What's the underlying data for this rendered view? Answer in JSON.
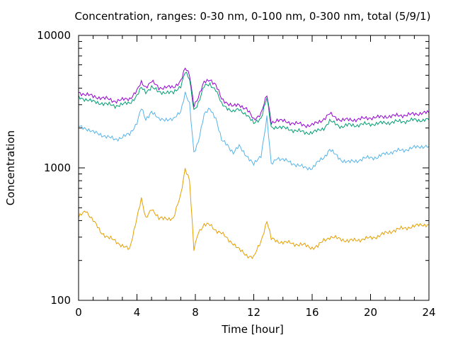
{
  "chart_data": {
    "type": "line",
    "title": "Concentration, ranges: 0-30 nm, 0-100 nm, 0-300 nm, total (5/9/1)",
    "xlabel": "Time [hour]",
    "ylabel": "Concentration",
    "xlim": [
      0,
      24
    ],
    "ylim": [
      100,
      10000
    ],
    "yscale": "log",
    "legend": "none",
    "grid": false,
    "x_ticks": [
      {
        "value": 0,
        "label": "0"
      },
      {
        "value": 4,
        "label": "4"
      },
      {
        "value": 8,
        "label": "8"
      },
      {
        "value": 12,
        "label": "12"
      },
      {
        "value": 16,
        "label": "16"
      },
      {
        "value": 20,
        "label": "20"
      },
      {
        "value": 24,
        "label": "24"
      }
    ],
    "y_ticks": [
      {
        "value": 100,
        "label": "100"
      },
      {
        "value": 1000,
        "label": "1000"
      },
      {
        "value": 10000,
        "label": "10000"
      }
    ],
    "x": [
      0,
      0.5,
      1,
      1.5,
      2,
      2.5,
      3,
      3.5,
      4,
      4.3,
      4.6,
      5,
      5.5,
      6,
      6.5,
      7,
      7.3,
      7.6,
      7.9,
      8.2,
      8.6,
      9,
      9.4,
      9.8,
      10.2,
      10.6,
      11,
      11.5,
      12,
      12.5,
      12.9,
      13.2,
      13.6,
      14,
      14.5,
      15,
      15.5,
      16,
      16.4,
      16.8,
      17.2,
      17.6,
      18,
      18.5,
      19,
      19.5,
      20,
      20.5,
      21,
      21.5,
      22,
      22.5,
      23,
      23.5,
      24
    ],
    "series": [
      {
        "color": "#9400d3",
        "values": [
          3700,
          3600,
          3450,
          3400,
          3300,
          3200,
          3250,
          3350,
          3800,
          4400,
          4100,
          4500,
          4000,
          4100,
          4000,
          4600,
          5600,
          5000,
          3000,
          3400,
          4400,
          4700,
          4200,
          3300,
          3100,
          2900,
          3000,
          2800,
          2300,
          2600,
          3500,
          2200,
          2300,
          2250,
          2200,
          2150,
          2100,
          2100,
          2200,
          2350,
          2550,
          2400,
          2300,
          2300,
          2320,
          2350,
          2400,
          2400,
          2450,
          2450,
          2500,
          2500,
          2550,
          2600,
          2600
        ]
      },
      {
        "color": "#009e73",
        "values": [
          3400,
          3300,
          3150,
          3100,
          3000,
          2950,
          3000,
          3100,
          3500,
          4000,
          3750,
          4100,
          3700,
          3750,
          3650,
          4200,
          5300,
          4600,
          2750,
          3100,
          4100,
          4300,
          3900,
          3000,
          2850,
          2650,
          2750,
          2550,
          2150,
          2400,
          3350,
          2000,
          2050,
          2000,
          1950,
          1900,
          1850,
          1850,
          1900,
          2000,
          2250,
          2150,
          2050,
          2100,
          2100,
          2130,
          2150,
          2150,
          2200,
          2200,
          2250,
          2250,
          2300,
          2300,
          2300
        ]
      },
      {
        "color": "#56b4e9",
        "values": [
          2050,
          2000,
          1850,
          1800,
          1700,
          1650,
          1700,
          1800,
          2200,
          2800,
          2300,
          2700,
          2300,
          2350,
          2300,
          2700,
          3700,
          3000,
          1300,
          1600,
          2500,
          2800,
          2400,
          1600,
          1500,
          1300,
          1450,
          1250,
          1050,
          1250,
          2400,
          1050,
          1200,
          1150,
          1100,
          1050,
          1000,
          1000,
          1100,
          1200,
          1380,
          1250,
          1150,
          1100,
          1130,
          1170,
          1200,
          1200,
          1280,
          1320,
          1350,
          1380,
          1420,
          1460,
          1450
        ]
      },
      {
        "color": "#e69f00",
        "values": [
          420,
          480,
          400,
          330,
          300,
          280,
          260,
          240,
          430,
          580,
          410,
          500,
          410,
          420,
          410,
          630,
          1000,
          800,
          240,
          330,
          370,
          370,
          340,
          320,
          290,
          270,
          240,
          220,
          210,
          280,
          400,
          290,
          280,
          275,
          270,
          265,
          260,
          250,
          255,
          285,
          300,
          295,
          290,
          280,
          285,
          290,
          295,
          305,
          320,
          335,
          345,
          355,
          360,
          375,
          370
        ]
      }
    ]
  }
}
